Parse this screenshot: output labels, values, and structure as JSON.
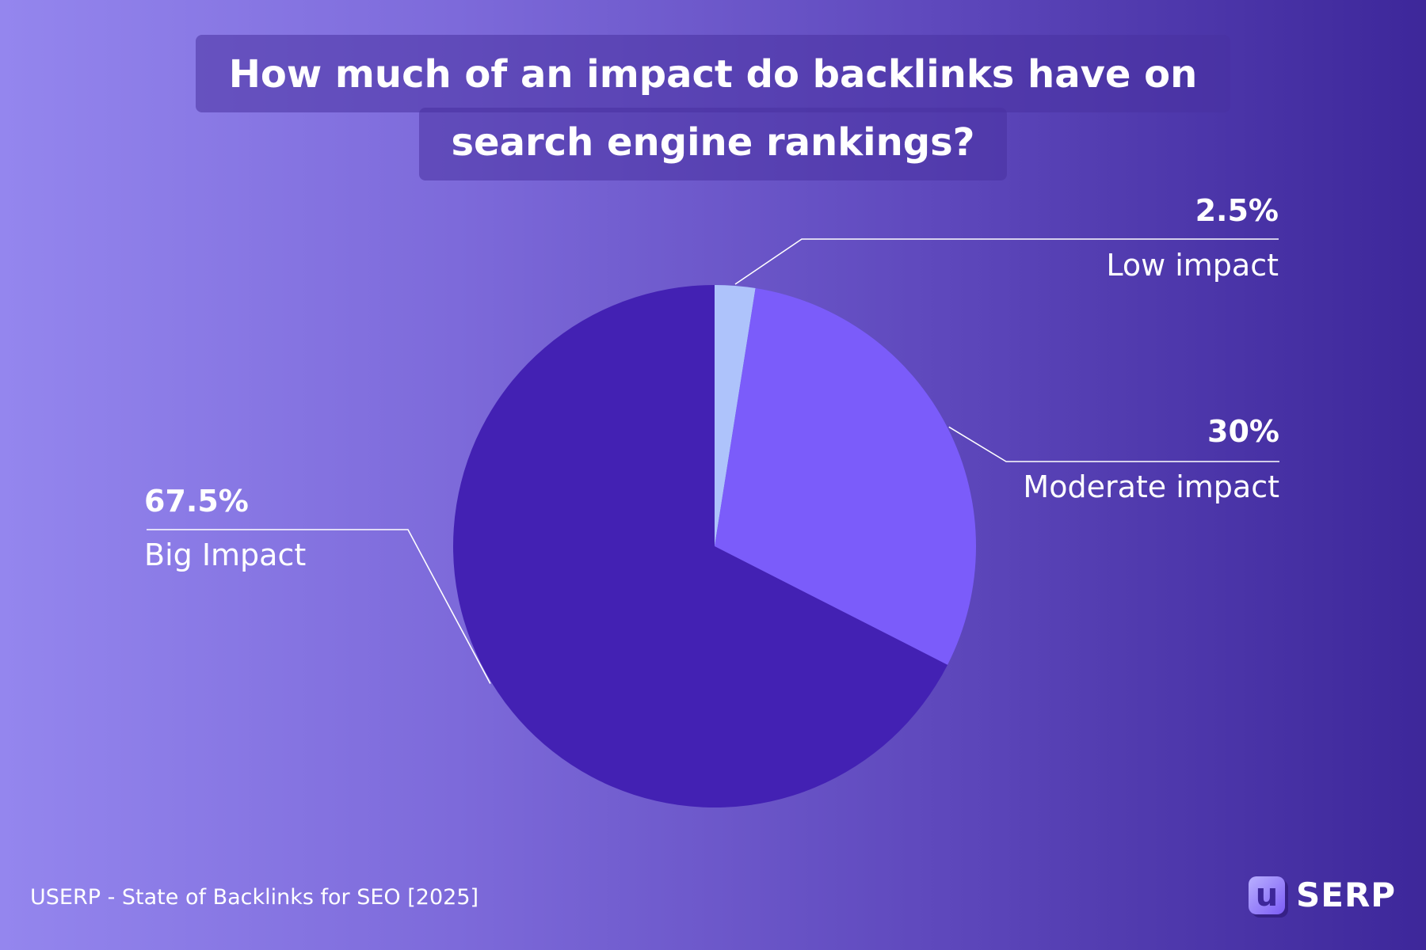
{
  "chart_data": {
    "type": "pie",
    "title_line1": "How much of an impact do backlinks have on",
    "title_line2": "search engine rankings?",
    "slices": [
      {
        "name": "Low impact",
        "label": "2.5%",
        "value": 2.5,
        "color": "#aec3fb"
      },
      {
        "name": "Moderate impact",
        "label": "30%",
        "value": 30,
        "color": "#7b5cfa"
      },
      {
        "name": "Big Impact",
        "label": "67.5%",
        "value": 67.5,
        "color": "#4321b3"
      }
    ]
  },
  "footer": {
    "source": "USERP - State of Backlinks for SEO [2025]"
  },
  "logo": {
    "mark": "u",
    "text": "SERP"
  }
}
